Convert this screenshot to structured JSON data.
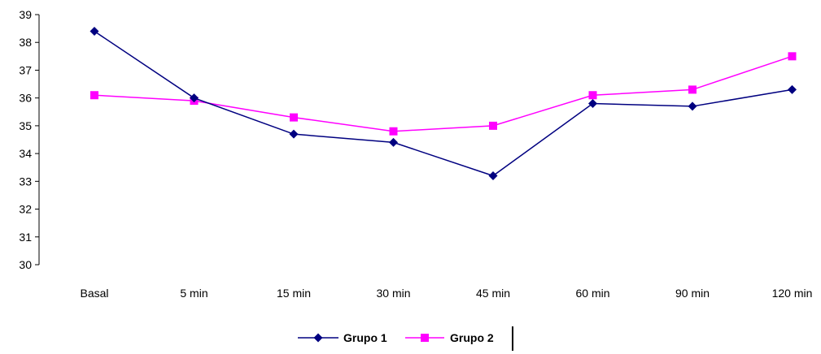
{
  "chart_data": {
    "type": "line",
    "title": "",
    "xlabel": "",
    "ylabel": "",
    "categories": [
      "Basal",
      "5 min",
      "15 min",
      "30 min",
      "45 min",
      "60 min",
      "90 min",
      "120 min"
    ],
    "ylim": [
      30,
      39
    ],
    "yticks": [
      "30",
      "31",
      "32",
      "33",
      "34",
      "35",
      "36",
      "37",
      "38",
      "39"
    ],
    "grid": false,
    "legend_position": "bottom",
    "series": [
      {
        "name": "Grupo 1",
        "color": "#000080",
        "marker": "diamond",
        "values": [
          38.4,
          36.0,
          34.7,
          34.4,
          33.2,
          35.8,
          35.7,
          36.3
        ]
      },
      {
        "name": "Grupo 2",
        "color": "#ff00ff",
        "marker": "square",
        "values": [
          36.1,
          35.9,
          35.3,
          34.8,
          35.0,
          36.1,
          36.3,
          37.5
        ]
      }
    ]
  }
}
